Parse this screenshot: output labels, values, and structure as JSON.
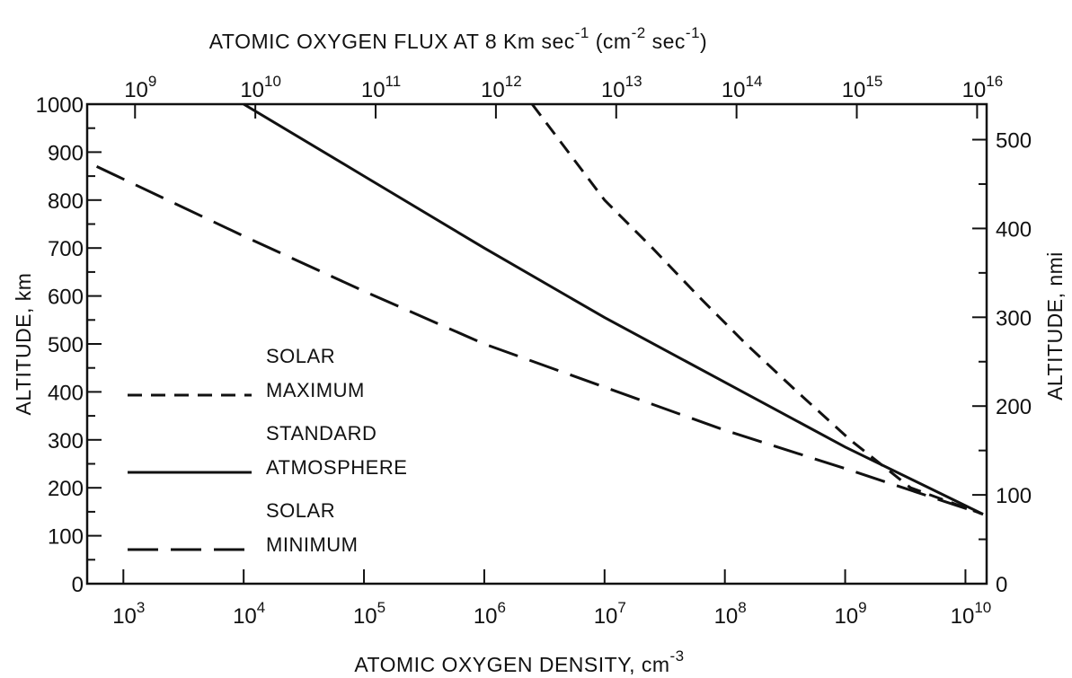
{
  "chart_data": {
    "type": "line",
    "title": "",
    "xlabel": {
      "text": "ATOMIC OXYGEN DENSITY,  cm",
      "sup": "-3"
    },
    "x2label": {
      "parts": [
        {
          "t": "ATOMIC OXYGEN FLUX AT 8 Km sec",
          "sup": false
        },
        {
          "t": "-1",
          "sup": true
        },
        {
          "t": "  (cm",
          "sup": false
        },
        {
          "t": "-2",
          "sup": true
        },
        {
          "t": " sec",
          "sup": false
        },
        {
          "t": "-1",
          "sup": true
        },
        {
          "t": ")",
          "sup": false
        }
      ]
    },
    "ylabel": "ALTITUDE,  km",
    "y2label": "ALTITUDE,  nmi",
    "x_scale": "log",
    "xlim": [
      500,
      15000000000
    ],
    "ylim": [
      0,
      1000
    ],
    "x_ticks": [
      {
        "value": 1000,
        "base": "10",
        "exp": "3"
      },
      {
        "value": 10000,
        "base": "10",
        "exp": "4"
      },
      {
        "value": 100000,
        "base": "10",
        "exp": "5"
      },
      {
        "value": 1000000,
        "base": "10",
        "exp": "6"
      },
      {
        "value": 10000000,
        "base": "10",
        "exp": "7"
      },
      {
        "value": 100000000,
        "base": "10",
        "exp": "8"
      },
      {
        "value": 1000000000,
        "base": "10",
        "exp": "9"
      },
      {
        "value": 10000000000,
        "base": "10",
        "exp": "10"
      }
    ],
    "x2_ticks": [
      {
        "value": 1000000000,
        "base": "10",
        "exp": "9"
      },
      {
        "value": 10000000000,
        "base": "10",
        "exp": "10"
      },
      {
        "value": 100000000000,
        "base": "10",
        "exp": "11"
      },
      {
        "value": 1000000000000,
        "base": "10",
        "exp": "12"
      },
      {
        "value": 10000000000000,
        "base": "10",
        "exp": "13"
      },
      {
        "value": 100000000000000,
        "base": "10",
        "exp": "14"
      },
      {
        "value": 1000000000000000,
        "base": "10",
        "exp": "15"
      },
      {
        "value": 10000000000000000,
        "base": "10",
        "exp": "16"
      }
    ],
    "x2_scale_factor": 800000,
    "y_ticks": [
      0,
      100,
      200,
      300,
      400,
      500,
      600,
      700,
      800,
      900,
      1000
    ],
    "y2_ticks": [
      0,
      100,
      200,
      300,
      400,
      500
    ],
    "y2_km_per_unit": 1.852,
    "grid": false,
    "legend_position": "left-middle",
    "series": [
      {
        "name": "SOLAR MAXIMUM",
        "label_lines": [
          "SOLAR",
          "MAXIMUM"
        ],
        "style": "short-dash",
        "points": [
          [
            2500000,
            1000
          ],
          [
            5000000,
            900
          ],
          [
            10000000,
            800
          ],
          [
            25000000,
            700
          ],
          [
            60000000,
            600
          ],
          [
            150000000,
            500
          ],
          [
            400000000,
            400
          ],
          [
            1100000000,
            300
          ],
          [
            3500000000,
            200
          ],
          [
            14000000000,
            145
          ]
        ]
      },
      {
        "name": "STANDARD ATMOSPHERE",
        "label_lines": [
          "STANDARD",
          "ATMOSPHERE"
        ],
        "style": "solid",
        "points": [
          [
            10000,
            1000
          ],
          [
            100000,
            850
          ],
          [
            1000000,
            700
          ],
          [
            10000000,
            555
          ],
          [
            100000000,
            420
          ],
          [
            1000000000,
            285
          ],
          [
            14000000000,
            145
          ]
        ]
      },
      {
        "name": "SOLAR MINIMUM",
        "label_lines": [
          "SOLAR",
          "MINIMUM"
        ],
        "style": "long-dash",
        "points": [
          [
            600,
            870
          ],
          [
            10000,
            725
          ],
          [
            100000,
            610
          ],
          [
            1000000,
            500
          ],
          [
            10000000,
            410
          ],
          [
            100000000,
            320
          ],
          [
            1000000000,
            240
          ],
          [
            14000000000,
            145
          ]
        ]
      }
    ]
  }
}
